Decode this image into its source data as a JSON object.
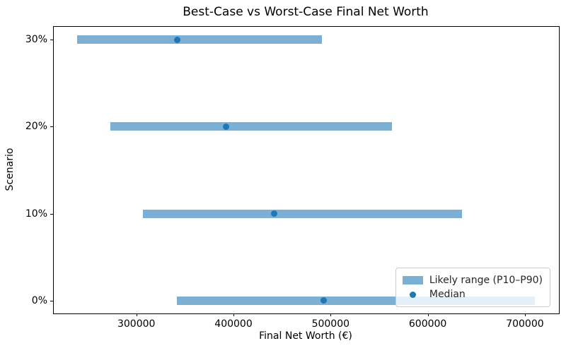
{
  "title": "Best-Case vs Worst-Case Final Net Worth",
  "chart_data": {
    "type": "bar",
    "orientation": "horizontal",
    "title": "Best-Case vs Worst-Case Final Net Worth",
    "xlabel": "Final Net Worth (€)",
    "ylabel": "Scenario",
    "categories_bottom_to_top": [
      "0%",
      "10%",
      "20%",
      "30%"
    ],
    "series": [
      {
        "name": "Likely range (P10–P90)",
        "role": "range",
        "p10": [
          342000,
          307000,
          273000,
          239000
        ],
        "p90": [
          710000,
          635000,
          563000,
          491000
        ]
      },
      {
        "name": "Median",
        "role": "median",
        "values": [
          493000,
          442000,
          392000,
          342000
        ]
      }
    ],
    "xlim": [
      215000,
      735000
    ],
    "x_ticks": [
      300000,
      400000,
      500000,
      600000,
      700000
    ],
    "grid": false,
    "legend_position": "lower right",
    "colors": {
      "bar": "#7bafd4",
      "median_dot": "#2077b4",
      "spine": "#000000",
      "legend_border": "#cccccc",
      "background": "#ffffff"
    }
  },
  "legend": {
    "items": [
      {
        "label": "Likely range (P10–P90)",
        "swatch": "bar"
      },
      {
        "label": "Median",
        "swatch": "dot"
      }
    ]
  }
}
